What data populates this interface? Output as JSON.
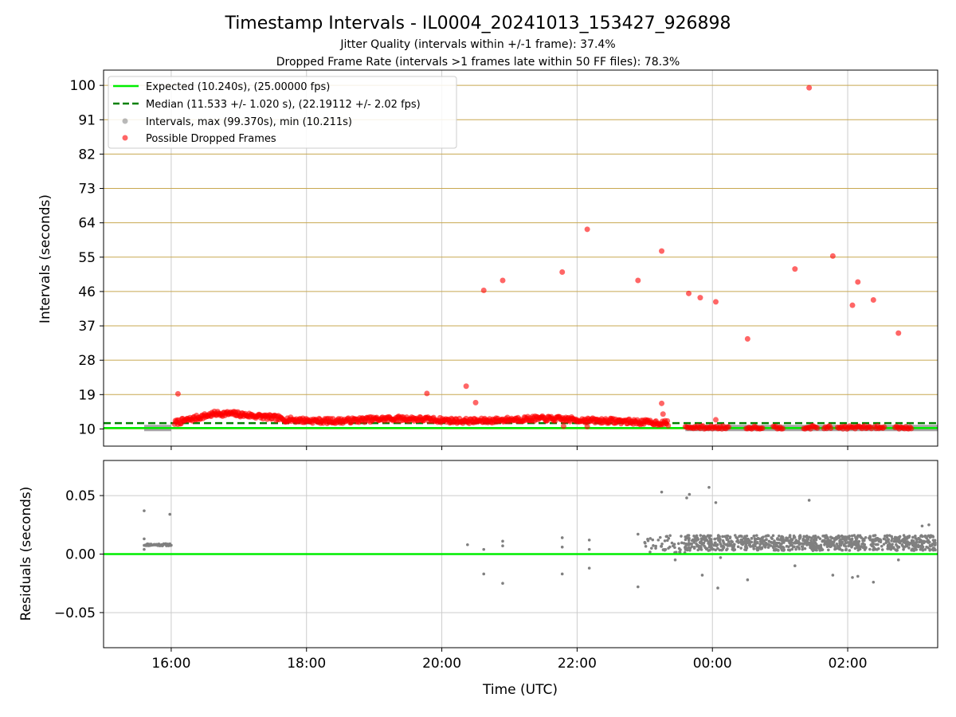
{
  "header": {
    "title": "Timestamp Intervals - IL0004_20241013_153427_926898",
    "subtitle1": "Jitter Quality (intervals within +/-1 frame): 37.4%",
    "subtitle2": "Dropped Frame Rate (intervals >1 frames late within 50 FF files): 78.3%"
  },
  "colors": {
    "expected": "#00ee00",
    "median": "#008000",
    "intervals": "#808080",
    "dropped": "#ff0000",
    "hgrid": "#c8a850",
    "vgrid": "#cccccc"
  },
  "chart_data": [
    {
      "type": "scatter",
      "ylabel": "Intervals (seconds)",
      "xlim": [
        15.0,
        27.33
      ],
      "ylim": [
        5.5,
        104.0
      ],
      "yticks": [
        10,
        19,
        28,
        37,
        46,
        55,
        64,
        73,
        82,
        91,
        100
      ],
      "grid": true,
      "legend_position": "upper-left",
      "legend": [
        "Expected (10.240s), (25.00000 fps)",
        "Median (11.533 +/- 1.020 s), (22.19112 +/- 2.02 fps)",
        "Intervals, max (99.370s), min (10.211s)",
        "Possible Dropped Frames"
      ],
      "expected_line": 10.24,
      "median_line": 11.533,
      "intervals_band": [
        {
          "x": [
            15.6,
            16.0
          ],
          "y": 10.25
        }
      ],
      "dense_band_segments": [
        {
          "x_from": 16.05,
          "x_to": 23.35,
          "y_start": 11.6,
          "hump_peak": 14.0,
          "y_end": 11.5,
          "level": 12.4
        },
        {
          "x_from": 23.6,
          "x_to": 27.1,
          "level": 10.4
        }
      ],
      "dropped_outliers": [
        {
          "x": 16.1,
          "y": 19.2
        },
        {
          "x": 19.78,
          "y": 19.3
        },
        {
          "x": 20.36,
          "y": 21.2
        },
        {
          "x": 20.5,
          "y": 16.9
        },
        {
          "x": 20.62,
          "y": 46.3
        },
        {
          "x": 20.9,
          "y": 48.9
        },
        {
          "x": 21.78,
          "y": 51.1
        },
        {
          "x": 22.15,
          "y": 62.3
        },
        {
          "x": 22.9,
          "y": 48.9
        },
        {
          "x": 23.25,
          "y": 16.7
        },
        {
          "x": 23.27,
          "y": 13.9
        },
        {
          "x": 23.25,
          "y": 56.6
        },
        {
          "x": 23.65,
          "y": 45.5
        },
        {
          "x": 23.82,
          "y": 44.4
        },
        {
          "x": 24.05,
          "y": 43.3
        },
        {
          "x": 24.52,
          "y": 33.6
        },
        {
          "x": 25.22,
          "y": 51.9
        },
        {
          "x": 25.43,
          "y": 99.37
        },
        {
          "x": 25.78,
          "y": 55.3
        },
        {
          "x": 26.07,
          "y": 42.4
        },
        {
          "x": 26.15,
          "y": 48.5
        },
        {
          "x": 26.38,
          "y": 43.8
        },
        {
          "x": 26.75,
          "y": 35.1
        },
        {
          "x": 24.05,
          "y": 12.4
        },
        {
          "x": 22.15,
          "y": 10.6
        },
        {
          "x": 21.8,
          "y": 10.7
        }
      ]
    },
    {
      "type": "scatter",
      "xlabel": "Time (UTC)",
      "ylabel": "Residuals (seconds)",
      "xlim": [
        15.0,
        27.33
      ],
      "ylim": [
        -0.08,
        0.08
      ],
      "yticks": [
        0.05,
        0.0,
        -0.05
      ],
      "ytick_labels": [
        "0.05",
        "0.00",
        "−0.05"
      ],
      "xticks": [
        16,
        18,
        20,
        22,
        24,
        26
      ],
      "xtick_labels": [
        "16:00",
        "18:00",
        "20:00",
        "22:00",
        "00:00",
        "02:00"
      ],
      "grid": true,
      "zero_line": 0.0,
      "early_cluster": {
        "x": [
          15.6,
          16.0
        ],
        "y": 0.008
      },
      "dense_band": {
        "x": [
          23.6,
          27.33
        ],
        "y": [
          0.003,
          0.016
        ]
      },
      "points": [
        {
          "x": 15.6,
          "y": 0.037
        },
        {
          "x": 15.6,
          "y": 0.013
        },
        {
          "x": 15.6,
          "y": 0.004
        },
        {
          "x": 15.98,
          "y": 0.034
        },
        {
          "x": 20.38,
          "y": 0.008
        },
        {
          "x": 20.62,
          "y": 0.004
        },
        {
          "x": 20.62,
          "y": -0.017
        },
        {
          "x": 20.9,
          "y": 0.011
        },
        {
          "x": 20.9,
          "y": 0.007
        },
        {
          "x": 20.9,
          "y": -0.025
        },
        {
          "x": 21.78,
          "y": 0.014
        },
        {
          "x": 21.78,
          "y": 0.006
        },
        {
          "x": 21.78,
          "y": -0.017
        },
        {
          "x": 22.18,
          "y": 0.012
        },
        {
          "x": 22.18,
          "y": 0.004
        },
        {
          "x": 22.18,
          "y": -0.012
        },
        {
          "x": 22.9,
          "y": 0.017
        },
        {
          "x": 22.9,
          "y": -0.028
        },
        {
          "x": 23.25,
          "y": 0.053
        },
        {
          "x": 23.62,
          "y": 0.048
        },
        {
          "x": 23.66,
          "y": 0.051
        },
        {
          "x": 23.35,
          "y": 0.005
        },
        {
          "x": 23.45,
          "y": -0.005
        },
        {
          "x": 23.85,
          "y": -0.018
        },
        {
          "x": 23.95,
          "y": 0.057
        },
        {
          "x": 24.05,
          "y": 0.044
        },
        {
          "x": 24.08,
          "y": -0.029
        },
        {
          "x": 24.52,
          "y": -0.022
        },
        {
          "x": 24.12,
          "y": -0.003
        },
        {
          "x": 25.22,
          "y": -0.01
        },
        {
          "x": 25.43,
          "y": 0.046
        },
        {
          "x": 25.78,
          "y": -0.018
        },
        {
          "x": 26.07,
          "y": -0.02
        },
        {
          "x": 26.15,
          "y": -0.019
        },
        {
          "x": 26.38,
          "y": -0.024
        },
        {
          "x": 26.75,
          "y": -0.005
        },
        {
          "x": 27.1,
          "y": 0.024
        },
        {
          "x": 27.2,
          "y": 0.025
        },
        {
          "x": 23.0,
          "y": 0.01
        },
        {
          "x": 23.1,
          "y": 0.005
        },
        {
          "x": 23.2,
          "y": 0.012
        },
        {
          "x": 23.5,
          "y": 0.009
        }
      ]
    }
  ]
}
